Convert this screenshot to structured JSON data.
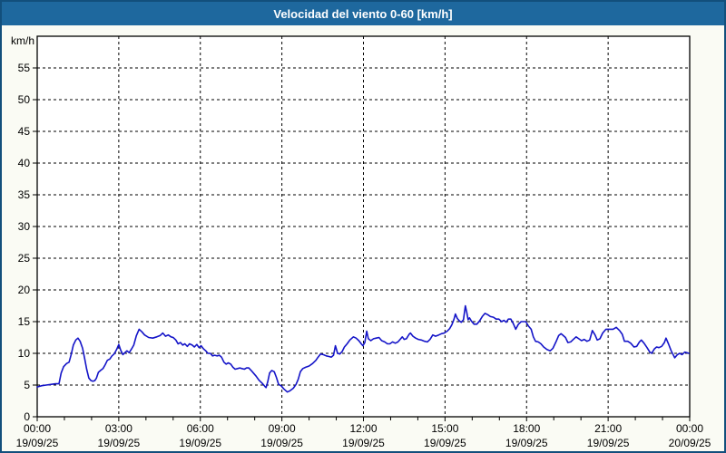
{
  "window": {
    "title": "Velocidad del viento 0-60 [km/h]"
  },
  "colors": {
    "titlebar_bg": "#1E689E",
    "titlebar_text": "#FFFFFF",
    "frame_border": "#124F7C",
    "page_bg": "#FAFBF4",
    "plot_bg": "#FFFFFF",
    "line": "#1414C8",
    "grid": "#000000",
    "axis": "#000000"
  },
  "chart_data": {
    "type": "line",
    "title": "Velocidad del viento 0-60 [km/h]",
    "y_unit_label": "km/h",
    "legend": "none",
    "grid": {
      "horizontal": true,
      "vertical": true,
      "style": "dashed-black"
    },
    "y_axis": {
      "min": 0,
      "max": 60,
      "tick_step": 5,
      "tick_labels": [
        "0",
        "5",
        "10",
        "15",
        "20",
        "25",
        "30",
        "35",
        "40",
        "45",
        "50",
        "55"
      ]
    },
    "x_axis": {
      "min_hours": 0,
      "max_hours": 24,
      "major_tick_hours": 3,
      "minor_tick_hours": 1,
      "tick_times": [
        "00:00",
        "03:00",
        "06:00",
        "09:00",
        "12:00",
        "15:00",
        "18:00",
        "21:00",
        "00:00"
      ],
      "tick_dates": [
        "19/09/25",
        "19/09/25",
        "19/09/25",
        "19/09/25",
        "19/09/25",
        "19/09/25",
        "19/09/25",
        "19/09/25",
        "20/09/25"
      ]
    },
    "series": [
      {
        "name": "Velocidad del viento",
        "color": "#1414C8",
        "points_hours_kmh": [
          [
            0,
            4.7
          ],
          [
            0.17,
            4.9
          ],
          [
            0.33,
            5.0
          ],
          [
            0.5,
            5.1
          ],
          [
            0.67,
            5.2
          ],
          [
            0.8,
            5.2
          ],
          [
            0.88,
            6.9
          ],
          [
            0.97,
            7.9
          ],
          [
            1.08,
            8.4
          ],
          [
            1.17,
            8.6
          ],
          [
            1.25,
            9.8
          ],
          [
            1.33,
            11.3
          ],
          [
            1.42,
            12.1
          ],
          [
            1.5,
            12.4
          ],
          [
            1.58,
            11.9
          ],
          [
            1.67,
            10.8
          ],
          [
            1.75,
            9.1
          ],
          [
            1.82,
            7.5
          ],
          [
            1.9,
            6.1
          ],
          [
            1.98,
            5.7
          ],
          [
            2.05,
            5.6
          ],
          [
            2.12,
            5.7
          ],
          [
            2.18,
            6.1
          ],
          [
            2.25,
            7.0
          ],
          [
            2.33,
            7.3
          ],
          [
            2.42,
            7.6
          ],
          [
            2.5,
            8.2
          ],
          [
            2.58,
            8.9
          ],
          [
            2.67,
            9.1
          ],
          [
            2.75,
            9.6
          ],
          [
            2.83,
            9.9
          ],
          [
            2.92,
            10.6
          ],
          [
            3.0,
            11.4
          ],
          [
            3.07,
            10.5
          ],
          [
            3.15,
            9.8
          ],
          [
            3.22,
            10.1
          ],
          [
            3.3,
            10.4
          ],
          [
            3.38,
            10.1
          ],
          [
            3.47,
            10.7
          ],
          [
            3.55,
            11.3
          ],
          [
            3.65,
            12.8
          ],
          [
            3.75,
            13.8
          ],
          [
            3.85,
            13.4
          ],
          [
            3.95,
            12.9
          ],
          [
            4.1,
            12.5
          ],
          [
            4.25,
            12.4
          ],
          [
            4.4,
            12.6
          ],
          [
            4.52,
            12.8
          ],
          [
            4.62,
            13.2
          ],
          [
            4.72,
            12.7
          ],
          [
            4.82,
            12.9
          ],
          [
            4.92,
            12.6
          ],
          [
            5.0,
            12.5
          ],
          [
            5.1,
            12.1
          ],
          [
            5.18,
            11.5
          ],
          [
            5.27,
            11.7
          ],
          [
            5.35,
            11.3
          ],
          [
            5.43,
            11.5
          ],
          [
            5.52,
            11.1
          ],
          [
            5.6,
            11.5
          ],
          [
            5.7,
            11.3
          ],
          [
            5.78,
            11.0
          ],
          [
            5.87,
            11.4
          ],
          [
            5.95,
            10.9
          ],
          [
            6.03,
            11.2
          ],
          [
            6.12,
            10.7
          ],
          [
            6.2,
            10.4
          ],
          [
            6.28,
            10.0
          ],
          [
            6.37,
            10.0
          ],
          [
            6.45,
            9.6
          ],
          [
            6.53,
            9.7
          ],
          [
            6.62,
            9.6
          ],
          [
            6.7,
            9.7
          ],
          [
            6.78,
            9.4
          ],
          [
            6.87,
            8.6
          ],
          [
            6.95,
            8.3
          ],
          [
            7.03,
            8.5
          ],
          [
            7.12,
            8.3
          ],
          [
            7.2,
            7.8
          ],
          [
            7.28,
            7.5
          ],
          [
            7.37,
            7.6
          ],
          [
            7.45,
            7.7
          ],
          [
            7.53,
            7.6
          ],
          [
            7.62,
            7.5
          ],
          [
            7.7,
            7.7
          ],
          [
            7.78,
            7.7
          ],
          [
            7.87,
            7.3
          ],
          [
            7.95,
            6.9
          ],
          [
            8.05,
            6.4
          ],
          [
            8.15,
            5.8
          ],
          [
            8.27,
            5.3
          ],
          [
            8.37,
            4.8
          ],
          [
            8.42,
            4.6
          ],
          [
            8.48,
            5.5
          ],
          [
            8.55,
            6.9
          ],
          [
            8.63,
            7.3
          ],
          [
            8.72,
            7.1
          ],
          [
            8.8,
            6.2
          ],
          [
            8.88,
            5.1
          ],
          [
            8.97,
            4.9
          ],
          [
            9.07,
            4.4
          ],
          [
            9.2,
            3.9
          ],
          [
            9.3,
            4.1
          ],
          [
            9.42,
            4.5
          ],
          [
            9.52,
            5.1
          ],
          [
            9.6,
            5.9
          ],
          [
            9.68,
            7.1
          ],
          [
            9.77,
            7.6
          ],
          [
            9.87,
            7.8
          ],
          [
            10.0,
            8.0
          ],
          [
            10.13,
            8.4
          ],
          [
            10.25,
            8.9
          ],
          [
            10.33,
            9.4
          ],
          [
            10.42,
            9.9
          ],
          [
            10.52,
            9.8
          ],
          [
            10.63,
            9.6
          ],
          [
            10.73,
            9.5
          ],
          [
            10.82,
            9.4
          ],
          [
            10.9,
            9.7
          ],
          [
            10.97,
            11.2
          ],
          [
            11.05,
            10.0
          ],
          [
            11.13,
            9.9
          ],
          [
            11.22,
            10.3
          ],
          [
            11.3,
            11.0
          ],
          [
            11.4,
            11.5
          ],
          [
            11.5,
            12.1
          ],
          [
            11.63,
            12.6
          ],
          [
            11.73,
            12.4
          ],
          [
            11.83,
            12.0
          ],
          [
            11.92,
            11.5
          ],
          [
            11.98,
            11.2
          ],
          [
            12.05,
            11.7
          ],
          [
            12.12,
            13.5
          ],
          [
            12.18,
            12.3
          ],
          [
            12.27,
            12.0
          ],
          [
            12.37,
            12.3
          ],
          [
            12.47,
            12.4
          ],
          [
            12.57,
            12.5
          ],
          [
            12.67,
            12.0
          ],
          [
            12.78,
            11.8
          ],
          [
            12.88,
            11.5
          ],
          [
            12.97,
            11.5
          ],
          [
            13.07,
            11.8
          ],
          [
            13.17,
            11.6
          ],
          [
            13.27,
            11.8
          ],
          [
            13.35,
            12.2
          ],
          [
            13.43,
            12.6
          ],
          [
            13.5,
            12.2
          ],
          [
            13.58,
            12.3
          ],
          [
            13.68,
            13.0
          ],
          [
            13.73,
            13.2
          ],
          [
            13.82,
            12.7
          ],
          [
            13.92,
            12.4
          ],
          [
            14.02,
            12.2
          ],
          [
            14.13,
            12.1
          ],
          [
            14.25,
            11.9
          ],
          [
            14.35,
            11.8
          ],
          [
            14.45,
            12.2
          ],
          [
            14.55,
            12.9
          ],
          [
            14.65,
            12.7
          ],
          [
            14.77,
            12.9
          ],
          [
            14.87,
            13.1
          ],
          [
            14.97,
            13.2
          ],
          [
            15.08,
            13.5
          ],
          [
            15.17,
            13.9
          ],
          [
            15.25,
            14.5
          ],
          [
            15.33,
            15.4
          ],
          [
            15.38,
            16.2
          ],
          [
            15.45,
            15.5
          ],
          [
            15.53,
            15.1
          ],
          [
            15.6,
            14.9
          ],
          [
            15.68,
            15.3
          ],
          [
            15.75,
            17.5
          ],
          [
            15.8,
            16.5
          ],
          [
            15.85,
            15.3
          ],
          [
            15.9,
            15.6
          ],
          [
            15.97,
            15.1
          ],
          [
            16.07,
            14.6
          ],
          [
            16.17,
            14.6
          ],
          [
            16.27,
            15.1
          ],
          [
            16.37,
            15.8
          ],
          [
            16.47,
            16.3
          ],
          [
            16.57,
            16.1
          ],
          [
            16.67,
            15.8
          ],
          [
            16.78,
            15.7
          ],
          [
            16.88,
            15.4
          ],
          [
            16.98,
            15.4
          ],
          [
            17.08,
            15.0
          ],
          [
            17.17,
            15.2
          ],
          [
            17.25,
            14.9
          ],
          [
            17.33,
            15.4
          ],
          [
            17.42,
            15.4
          ],
          [
            17.52,
            14.6
          ],
          [
            17.6,
            13.8
          ],
          [
            17.7,
            14.6
          ],
          [
            17.8,
            15.0
          ],
          [
            17.97,
            15.0
          ],
          [
            18.07,
            14.3
          ],
          [
            18.17,
            13.8
          ],
          [
            18.25,
            12.6
          ],
          [
            18.33,
            11.9
          ],
          [
            18.43,
            11.8
          ],
          [
            18.53,
            11.5
          ],
          [
            18.63,
            11.0
          ],
          [
            18.75,
            10.6
          ],
          [
            18.87,
            10.4
          ],
          [
            18.97,
            10.8
          ],
          [
            19.08,
            11.8
          ],
          [
            19.18,
            12.8
          ],
          [
            19.27,
            13.1
          ],
          [
            19.35,
            12.8
          ],
          [
            19.43,
            12.5
          ],
          [
            19.52,
            11.7
          ],
          [
            19.62,
            11.8
          ],
          [
            19.72,
            12.2
          ],
          [
            19.82,
            12.6
          ],
          [
            19.92,
            12.3
          ],
          [
            20.02,
            12.0
          ],
          [
            20.12,
            12.2
          ],
          [
            20.22,
            11.9
          ],
          [
            20.32,
            12.1
          ],
          [
            20.42,
            13.6
          ],
          [
            20.52,
            12.9
          ],
          [
            20.6,
            12.1
          ],
          [
            20.7,
            12.3
          ],
          [
            20.8,
            13.2
          ],
          [
            20.92,
            13.8
          ],
          [
            21.05,
            13.8
          ],
          [
            21.18,
            13.8
          ],
          [
            21.3,
            14.1
          ],
          [
            21.42,
            13.6
          ],
          [
            21.52,
            13.0
          ],
          [
            21.6,
            11.9
          ],
          [
            21.72,
            11.9
          ],
          [
            21.83,
            11.6
          ],
          [
            21.95,
            11.0
          ],
          [
            22.05,
            11.1
          ],
          [
            22.15,
            11.8
          ],
          [
            22.22,
            12.1
          ],
          [
            22.32,
            11.6
          ],
          [
            22.43,
            10.9
          ],
          [
            22.53,
            10.2
          ],
          [
            22.6,
            10.0
          ],
          [
            22.7,
            10.7
          ],
          [
            22.78,
            11.0
          ],
          [
            22.87,
            10.9
          ],
          [
            22.97,
            11.1
          ],
          [
            23.07,
            11.7
          ],
          [
            23.13,
            12.4
          ],
          [
            23.22,
            11.5
          ],
          [
            23.32,
            10.4
          ],
          [
            23.45,
            9.3
          ],
          [
            23.55,
            9.8
          ],
          [
            23.63,
            10.0
          ],
          [
            23.72,
            9.8
          ],
          [
            23.82,
            10.2
          ],
          [
            23.9,
            10.1
          ],
          [
            23.97,
            10.0
          ]
        ]
      }
    ]
  }
}
